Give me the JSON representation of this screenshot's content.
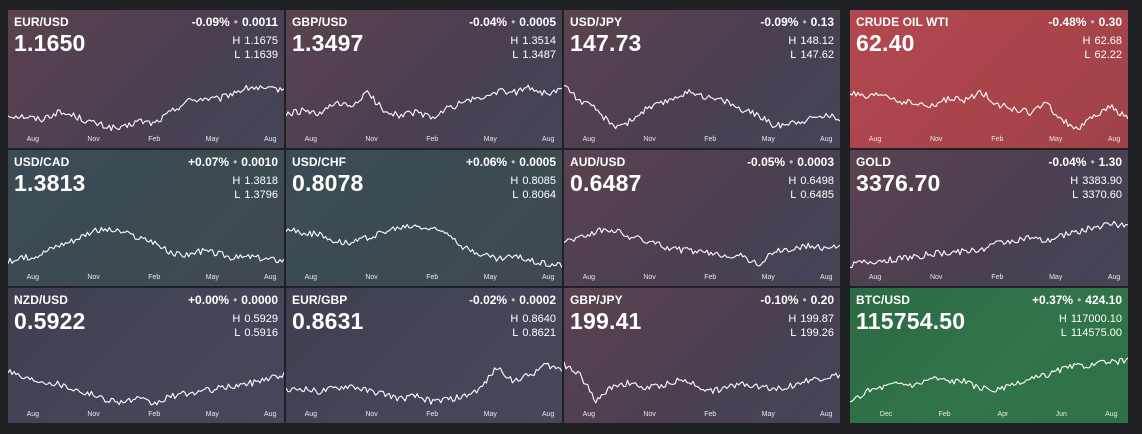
{
  "month_labels": [
    "Aug",
    "Nov",
    "Feb",
    "May",
    "Aug"
  ],
  "btc_month_labels": [
    "Dec",
    "Feb",
    "Apr",
    "Jun",
    "Aug"
  ],
  "colors": {
    "background": "#1f2125",
    "up_strong": "#2f6e46",
    "down_strong": "#a3444a",
    "tile_mauve": "#4a3d4e",
    "tile_slate": "#394a52",
    "line": "#ffffff"
  },
  "tiles": [
    {
      "symbol": "EUR/USD",
      "change": "-0.09%",
      "change_abs": "0.0011",
      "price": "1.1650",
      "high": "1.1675",
      "low": "1.1639",
      "tone": "mauve",
      "trend": "eurusd"
    },
    {
      "symbol": "GBP/USD",
      "change": "-0.04%",
      "change_abs": "0.0005",
      "price": "1.3497",
      "high": "1.3514",
      "low": "1.3487",
      "tone": "mauve",
      "trend": "gbpusd"
    },
    {
      "symbol": "USD/JPY",
      "change": "-0.09%",
      "change_abs": "0.13",
      "price": "147.73",
      "high": "148.12",
      "low": "147.62",
      "tone": "mauve",
      "trend": "usdjpy"
    },
    {
      "symbol": "CRUDE OIL WTI",
      "change": "-0.48%",
      "change_abs": "0.30",
      "price": "62.40",
      "high": "62.68",
      "low": "62.22",
      "tone": "red",
      "trend": "oil"
    },
    {
      "symbol": "USD/CAD",
      "change": "+0.07%",
      "change_abs": "0.0010",
      "price": "1.3813",
      "high": "1.3818",
      "low": "1.3796",
      "tone": "slate",
      "trend": "usdcad"
    },
    {
      "symbol": "USD/CHF",
      "change": "+0.06%",
      "change_abs": "0.0005",
      "price": "0.8078",
      "high": "0.8085",
      "low": "0.8064",
      "tone": "slate",
      "trend": "usdchf"
    },
    {
      "symbol": "AUD/USD",
      "change": "-0.05%",
      "change_abs": "0.0003",
      "price": "0.6487",
      "high": "0.6498",
      "low": "0.6485",
      "tone": "mauve",
      "trend": "audusd"
    },
    {
      "symbol": "GOLD",
      "change": "-0.04%",
      "change_abs": "1.30",
      "price": "3376.70",
      "high": "3383.90",
      "low": "3370.60",
      "tone": "mauve",
      "trend": "gold"
    },
    {
      "symbol": "NZD/USD",
      "change": "+0.00%",
      "change_abs": "0.0000",
      "price": "0.5922",
      "high": "0.5929",
      "low": "0.5916",
      "tone": "gray",
      "trend": "nzdusd"
    },
    {
      "symbol": "EUR/GBP",
      "change": "-0.02%",
      "change_abs": "0.0002",
      "price": "0.8631",
      "high": "0.8640",
      "low": "0.8621",
      "tone": "gray",
      "trend": "eurgbp"
    },
    {
      "symbol": "GBP/JPY",
      "change": "-0.10%",
      "change_abs": "0.20",
      "price": "199.41",
      "high": "199.87",
      "low": "199.26",
      "tone": "mauve",
      "trend": "gbpjpy"
    },
    {
      "symbol": "BTC/USD",
      "change": "+0.37%",
      "change_abs": "424.10",
      "price": "115754.50",
      "high": "117000.10",
      "low": "114575.00",
      "tone": "green",
      "trend": "btc"
    }
  ],
  "labels": {
    "high": "H",
    "low": "L"
  }
}
